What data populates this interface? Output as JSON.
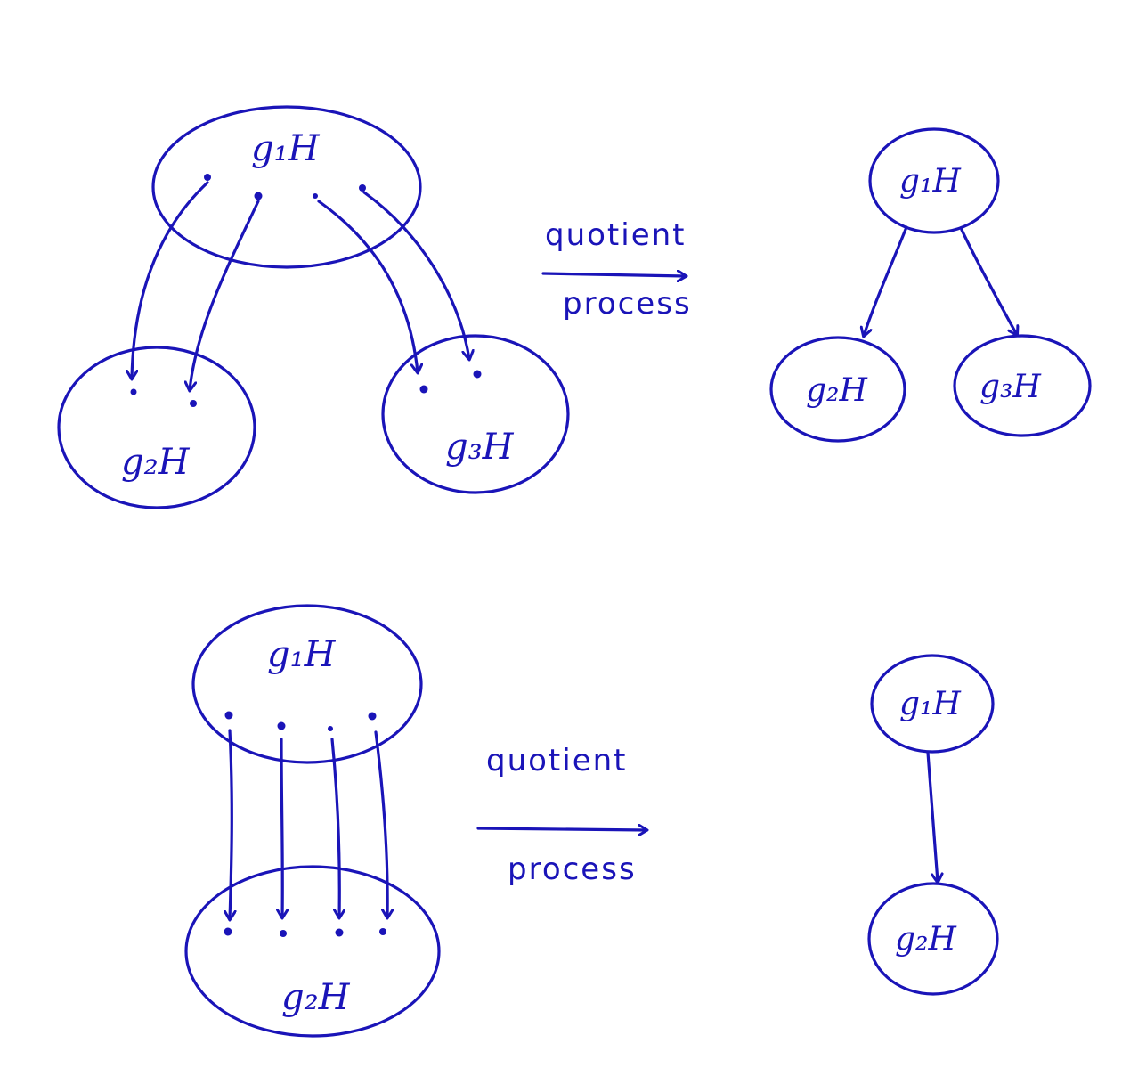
{
  "top_diagram": {
    "source_label": "g₁H",
    "target_left_label": "g₂H",
    "target_right_label": "g₃H",
    "process_label_line1": "quotient",
    "process_label_line2": "process",
    "result": {
      "top": "g₁H",
      "left": "g₂H",
      "right": "g₃H"
    }
  },
  "bottom_diagram": {
    "source_label": "g₁H",
    "target_label": "g₂H",
    "process_label_line1": "quotient",
    "process_label_line2": "process",
    "result": {
      "top": "g₁H",
      "bottom": "g₂H"
    }
  },
  "ink_color": "#1a14b8"
}
